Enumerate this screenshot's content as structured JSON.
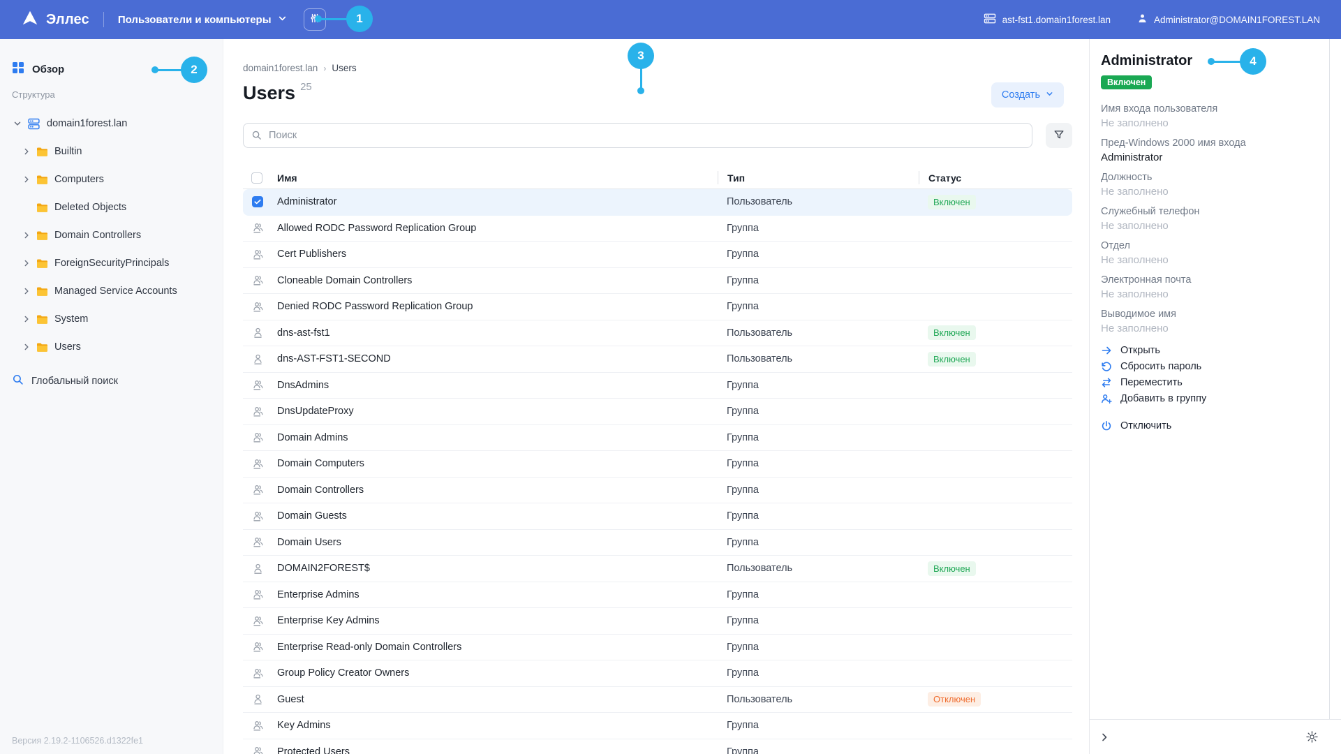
{
  "topbar": {
    "logo_text": "Эллес",
    "nav_dropdown": "Пользователи и компьютеры",
    "server": "ast-fst1.domain1forest.lan",
    "account": "Administrator@DOMAIN1FOREST.LAN"
  },
  "callouts": [
    "1",
    "2",
    "3",
    "4"
  ],
  "sidebar": {
    "overview_label": "Обзор",
    "structure_label": "Структура",
    "tree": [
      {
        "label": "domain1forest.lan",
        "icon": "domain",
        "chevron": "down",
        "level": 0
      },
      {
        "label": "Builtin",
        "icon": "folder",
        "chevron": "right",
        "level": 1
      },
      {
        "label": "Computers",
        "icon": "folder",
        "chevron": "right",
        "level": 1
      },
      {
        "label": "Deleted Objects",
        "icon": "folder",
        "chevron": "none",
        "level": 1
      },
      {
        "label": "Domain Controllers",
        "icon": "folder",
        "chevron": "right",
        "level": 1
      },
      {
        "label": "ForeignSecurityPrincipals",
        "icon": "folder",
        "chevron": "right",
        "level": 1
      },
      {
        "label": "Managed Service Accounts",
        "icon": "folder",
        "chevron": "right",
        "level": 1
      },
      {
        "label": "System",
        "icon": "folder",
        "chevron": "right",
        "level": 1
      },
      {
        "label": "Users",
        "icon": "folder",
        "chevron": "right",
        "level": 1
      }
    ],
    "global_search_label": "Глобальный поиск",
    "version": "Версия 2.19.2-1106526.d1322fe1"
  },
  "main": {
    "breadcrumb_root": "domain1forest.lan",
    "breadcrumb_current": "Users",
    "title": "Users",
    "count": "25",
    "create_button": "Создать",
    "search_placeholder": "Поиск",
    "table": {
      "columns": [
        "Имя",
        "Тип",
        "Статус"
      ],
      "rows": [
        {
          "name": "Administrator",
          "type": "Пользователь",
          "status": "Включен",
          "status_kind": "on",
          "icon": "user",
          "selected": true
        },
        {
          "name": "Allowed RODC Password Replication Group",
          "type": "Группа",
          "status": "",
          "status_kind": "",
          "icon": "group",
          "selected": false
        },
        {
          "name": "Cert Publishers",
          "type": "Группа",
          "status": "",
          "status_kind": "",
          "icon": "group",
          "selected": false
        },
        {
          "name": "Cloneable Domain Controllers",
          "type": "Группа",
          "status": "",
          "status_kind": "",
          "icon": "group",
          "selected": false
        },
        {
          "name": "Denied RODC Password Replication Group",
          "type": "Группа",
          "status": "",
          "status_kind": "",
          "icon": "group",
          "selected": false
        },
        {
          "name": "dns-ast-fst1",
          "type": "Пользователь",
          "status": "Включен",
          "status_kind": "on",
          "icon": "user",
          "selected": false
        },
        {
          "name": "dns-AST-FST1-SECOND",
          "type": "Пользователь",
          "status": "Включен",
          "status_kind": "on",
          "icon": "user",
          "selected": false
        },
        {
          "name": "DnsAdmins",
          "type": "Группа",
          "status": "",
          "status_kind": "",
          "icon": "group",
          "selected": false
        },
        {
          "name": "DnsUpdateProxy",
          "type": "Группа",
          "status": "",
          "status_kind": "",
          "icon": "group",
          "selected": false
        },
        {
          "name": "Domain Admins",
          "type": "Группа",
          "status": "",
          "status_kind": "",
          "icon": "group",
          "selected": false
        },
        {
          "name": "Domain Computers",
          "type": "Группа",
          "status": "",
          "status_kind": "",
          "icon": "group",
          "selected": false
        },
        {
          "name": "Domain Controllers",
          "type": "Группа",
          "status": "",
          "status_kind": "",
          "icon": "group",
          "selected": false
        },
        {
          "name": "Domain Guests",
          "type": "Группа",
          "status": "",
          "status_kind": "",
          "icon": "group",
          "selected": false
        },
        {
          "name": "Domain Users",
          "type": "Группа",
          "status": "",
          "status_kind": "",
          "icon": "group",
          "selected": false
        },
        {
          "name": "DOMAIN2FOREST$",
          "type": "Пользователь",
          "status": "Включен",
          "status_kind": "on",
          "icon": "user",
          "selected": false
        },
        {
          "name": "Enterprise Admins",
          "type": "Группа",
          "status": "",
          "status_kind": "",
          "icon": "group",
          "selected": false
        },
        {
          "name": "Enterprise Key Admins",
          "type": "Группа",
          "status": "",
          "status_kind": "",
          "icon": "group",
          "selected": false
        },
        {
          "name": "Enterprise Read-only Domain Controllers",
          "type": "Группа",
          "status": "",
          "status_kind": "",
          "icon": "group",
          "selected": false
        },
        {
          "name": "Group Policy Creator Owners",
          "type": "Группа",
          "status": "",
          "status_kind": "",
          "icon": "group",
          "selected": false
        },
        {
          "name": "Guest",
          "type": "Пользователь",
          "status": "Отключен",
          "status_kind": "off",
          "icon": "user",
          "selected": false
        },
        {
          "name": "Key Admins",
          "type": "Группа",
          "status": "",
          "status_kind": "",
          "icon": "group",
          "selected": false
        },
        {
          "name": "Protected Users",
          "type": "Группа",
          "status": "",
          "status_kind": "",
          "icon": "group",
          "selected": false
        }
      ]
    }
  },
  "details": {
    "title": "Administrator",
    "status_badge": "Включен",
    "fields": [
      {
        "label": "Имя входа пользователя",
        "value": "Не заполнено",
        "filled": false
      },
      {
        "label": "Пред-Windows 2000 имя входа",
        "value": "Administrator",
        "filled": true
      },
      {
        "label": "Должность",
        "value": "Не заполнено",
        "filled": false
      },
      {
        "label": "Служебный телефон",
        "value": "Не заполнено",
        "filled": false
      },
      {
        "label": "Отдел",
        "value": "Не заполнено",
        "filled": false
      },
      {
        "label": "Электронная почта",
        "value": "Не заполнено",
        "filled": false
      },
      {
        "label": "Выводимое имя",
        "value": "Не заполнено",
        "filled": false
      }
    ],
    "actions": [
      {
        "label": "Открыть",
        "icon": "open",
        "separated": false
      },
      {
        "label": "Сбросить пароль",
        "icon": "reset",
        "separated": false
      },
      {
        "label": "Переместить",
        "icon": "move",
        "separated": false
      },
      {
        "label": "Добавить в группу",
        "icon": "add-group",
        "separated": false
      },
      {
        "label": "Отключить",
        "icon": "power",
        "separated": true
      }
    ]
  },
  "colors": {
    "topbar": "#4a6cd4",
    "accent": "#2e7cf0",
    "callout": "#29b2ea",
    "status_on": "#1fa755",
    "status_off": "#ef6c2e",
    "badge_green": "#1aa853",
    "folder": "#fcc434"
  }
}
